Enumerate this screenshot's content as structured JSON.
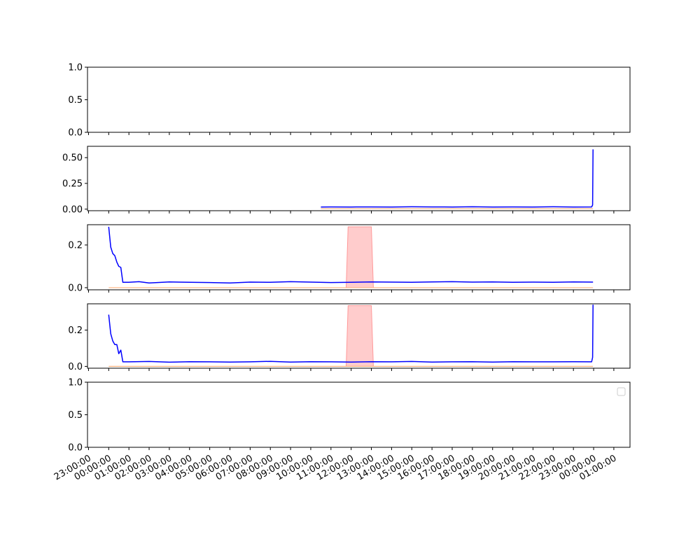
{
  "chart_data": {
    "type": "line",
    "shared_x_tick_labels": [
      "23:00:00",
      "00:00:00",
      "01:00:00",
      "02:00:00",
      "03:00:00",
      "04:00:00",
      "05:00:00",
      "06:00:00",
      "07:00:00",
      "08:00:00",
      "09:00:00",
      "10:00:00",
      "11:00:00",
      "12:00:00",
      "13:00:00",
      "14:00:00",
      "15:00:00",
      "16:00:00",
      "17:00:00",
      "18:00:00",
      "19:00:00",
      "20:00:00",
      "21:00:00",
      "22:00:00",
      "23:00:00",
      "00:00:00",
      "01:00:00"
    ],
    "x_range_hours": [
      -1.05,
      25.8
    ],
    "colors": {
      "series": "#0000ff",
      "band": "#ff9999",
      "baseline": "#ffb380"
    },
    "subplots": [
      {
        "ylim": [
          0,
          1
        ],
        "yticks": [
          0,
          0.5,
          1
        ],
        "ytick_labels": [
          "0.0",
          "0.5",
          "1.0"
        ],
        "series": []
      },
      {
        "ylim": [
          -0.015,
          0.61
        ],
        "yticks": [
          0,
          0.25,
          0.5
        ],
        "ytick_labels": [
          "0.00",
          "0.25",
          "0.50"
        ],
        "series": [
          {
            "line_points": [
              [
                10.5,
                0.02
              ],
              [
                11,
                0.022
              ],
              [
                12,
                0.021
              ],
              [
                13,
                0.022
              ],
              [
                14,
                0.02
              ],
              [
                15,
                0.023
              ],
              [
                16,
                0.022
              ],
              [
                17,
                0.021
              ],
              [
                18,
                0.023
              ],
              [
                19,
                0.02
              ],
              [
                20,
                0.022
              ],
              [
                21,
                0.021
              ],
              [
                22,
                0.023
              ],
              [
                23,
                0.021
              ],
              [
                23.9,
                0.022
              ],
              [
                23.95,
                0.04
              ],
              [
                23.97,
                0.58
              ]
            ],
            "baseline": [
              [
                10.5,
                0.005
              ],
              [
                23.97,
                0.005
              ]
            ]
          }
        ]
      },
      {
        "ylim": [
          -0.01,
          0.295
        ],
        "yticks": [
          0,
          0.2
        ],
        "ytick_labels": [
          "0.0",
          "0.2"
        ],
        "series": [
          {
            "line_points": [
              [
                0,
                0.285
              ],
              [
                0.1,
                0.19
              ],
              [
                0.2,
                0.16
              ],
              [
                0.3,
                0.15
              ],
              [
                0.4,
                0.12
              ],
              [
                0.5,
                0.1
              ],
              [
                0.6,
                0.095
              ],
              [
                0.7,
                0.025
              ],
              [
                1,
                0.025
              ],
              [
                1.5,
                0.028
              ],
              [
                2,
                0.022
              ],
              [
                3,
                0.027
              ],
              [
                4,
                0.025
              ],
              [
                5,
                0.024
              ],
              [
                6,
                0.022
              ],
              [
                7,
                0.026
              ],
              [
                8,
                0.025
              ],
              [
                9,
                0.028
              ],
              [
                10,
                0.026
              ],
              [
                11,
                0.024
              ],
              [
                12,
                0.025
              ],
              [
                13,
                0.027
              ],
              [
                14,
                0.026
              ],
              [
                15,
                0.025
              ],
              [
                16,
                0.027
              ],
              [
                17,
                0.028
              ],
              [
                18,
                0.026
              ],
              [
                19,
                0.027
              ],
              [
                20,
                0.025
              ],
              [
                21,
                0.026
              ],
              [
                22,
                0.025
              ],
              [
                23,
                0.027
              ],
              [
                23.97,
                0.026
              ]
            ],
            "baseline": [
              [
                0,
                0
              ],
              [
                23.97,
                0
              ]
            ],
            "band": [
              [
                11.85,
                0.285
              ],
              [
                13,
                0.285
              ],
              [
                13.1,
                0
              ],
              [
                11.75,
                0
              ]
            ]
          }
        ]
      },
      {
        "ylim": [
          -0.01,
          0.345
        ],
        "yticks": [
          0,
          0.2
        ],
        "ytick_labels": [
          "0.0",
          "0.2"
        ],
        "series": [
          {
            "line_points": [
              [
                0,
                0.285
              ],
              [
                0.1,
                0.18
              ],
              [
                0.2,
                0.14
              ],
              [
                0.3,
                0.12
              ],
              [
                0.4,
                0.12
              ],
              [
                0.5,
                0.07
              ],
              [
                0.6,
                0.09
              ],
              [
                0.7,
                0.025
              ],
              [
                1,
                0.025
              ],
              [
                2,
                0.027
              ],
              [
                3,
                0.023
              ],
              [
                4,
                0.026
              ],
              [
                5,
                0.025
              ],
              [
                6,
                0.024
              ],
              [
                7,
                0.025
              ],
              [
                8,
                0.028
              ],
              [
                9,
                0.024
              ],
              [
                10,
                0.026
              ],
              [
                11,
                0.025
              ],
              [
                12,
                0.024
              ],
              [
                13,
                0.026
              ],
              [
                14,
                0.025
              ],
              [
                15,
                0.027
              ],
              [
                16,
                0.024
              ],
              [
                17,
                0.025
              ],
              [
                18,
                0.026
              ],
              [
                19,
                0.024
              ],
              [
                20,
                0.026
              ],
              [
                21,
                0.025
              ],
              [
                22,
                0.025
              ],
              [
                23,
                0.026
              ],
              [
                23.9,
                0.025
              ],
              [
                23.95,
                0.05
              ],
              [
                23.97,
                0.34
              ]
            ],
            "baseline": [
              [
                0,
                0
              ],
              [
                23.97,
                0
              ]
            ],
            "band": [
              [
                11.85,
                0.335
              ],
              [
                13,
                0.335
              ],
              [
                13.1,
                0
              ],
              [
                11.75,
                0
              ]
            ]
          }
        ]
      },
      {
        "ylim": [
          0,
          1
        ],
        "yticks": [
          0,
          0.5,
          1
        ],
        "ytick_labels": [
          "0.0",
          "0.5",
          "1.0"
        ],
        "series": [],
        "legend": {
          "location": "upper right",
          "entries": []
        }
      }
    ]
  }
}
